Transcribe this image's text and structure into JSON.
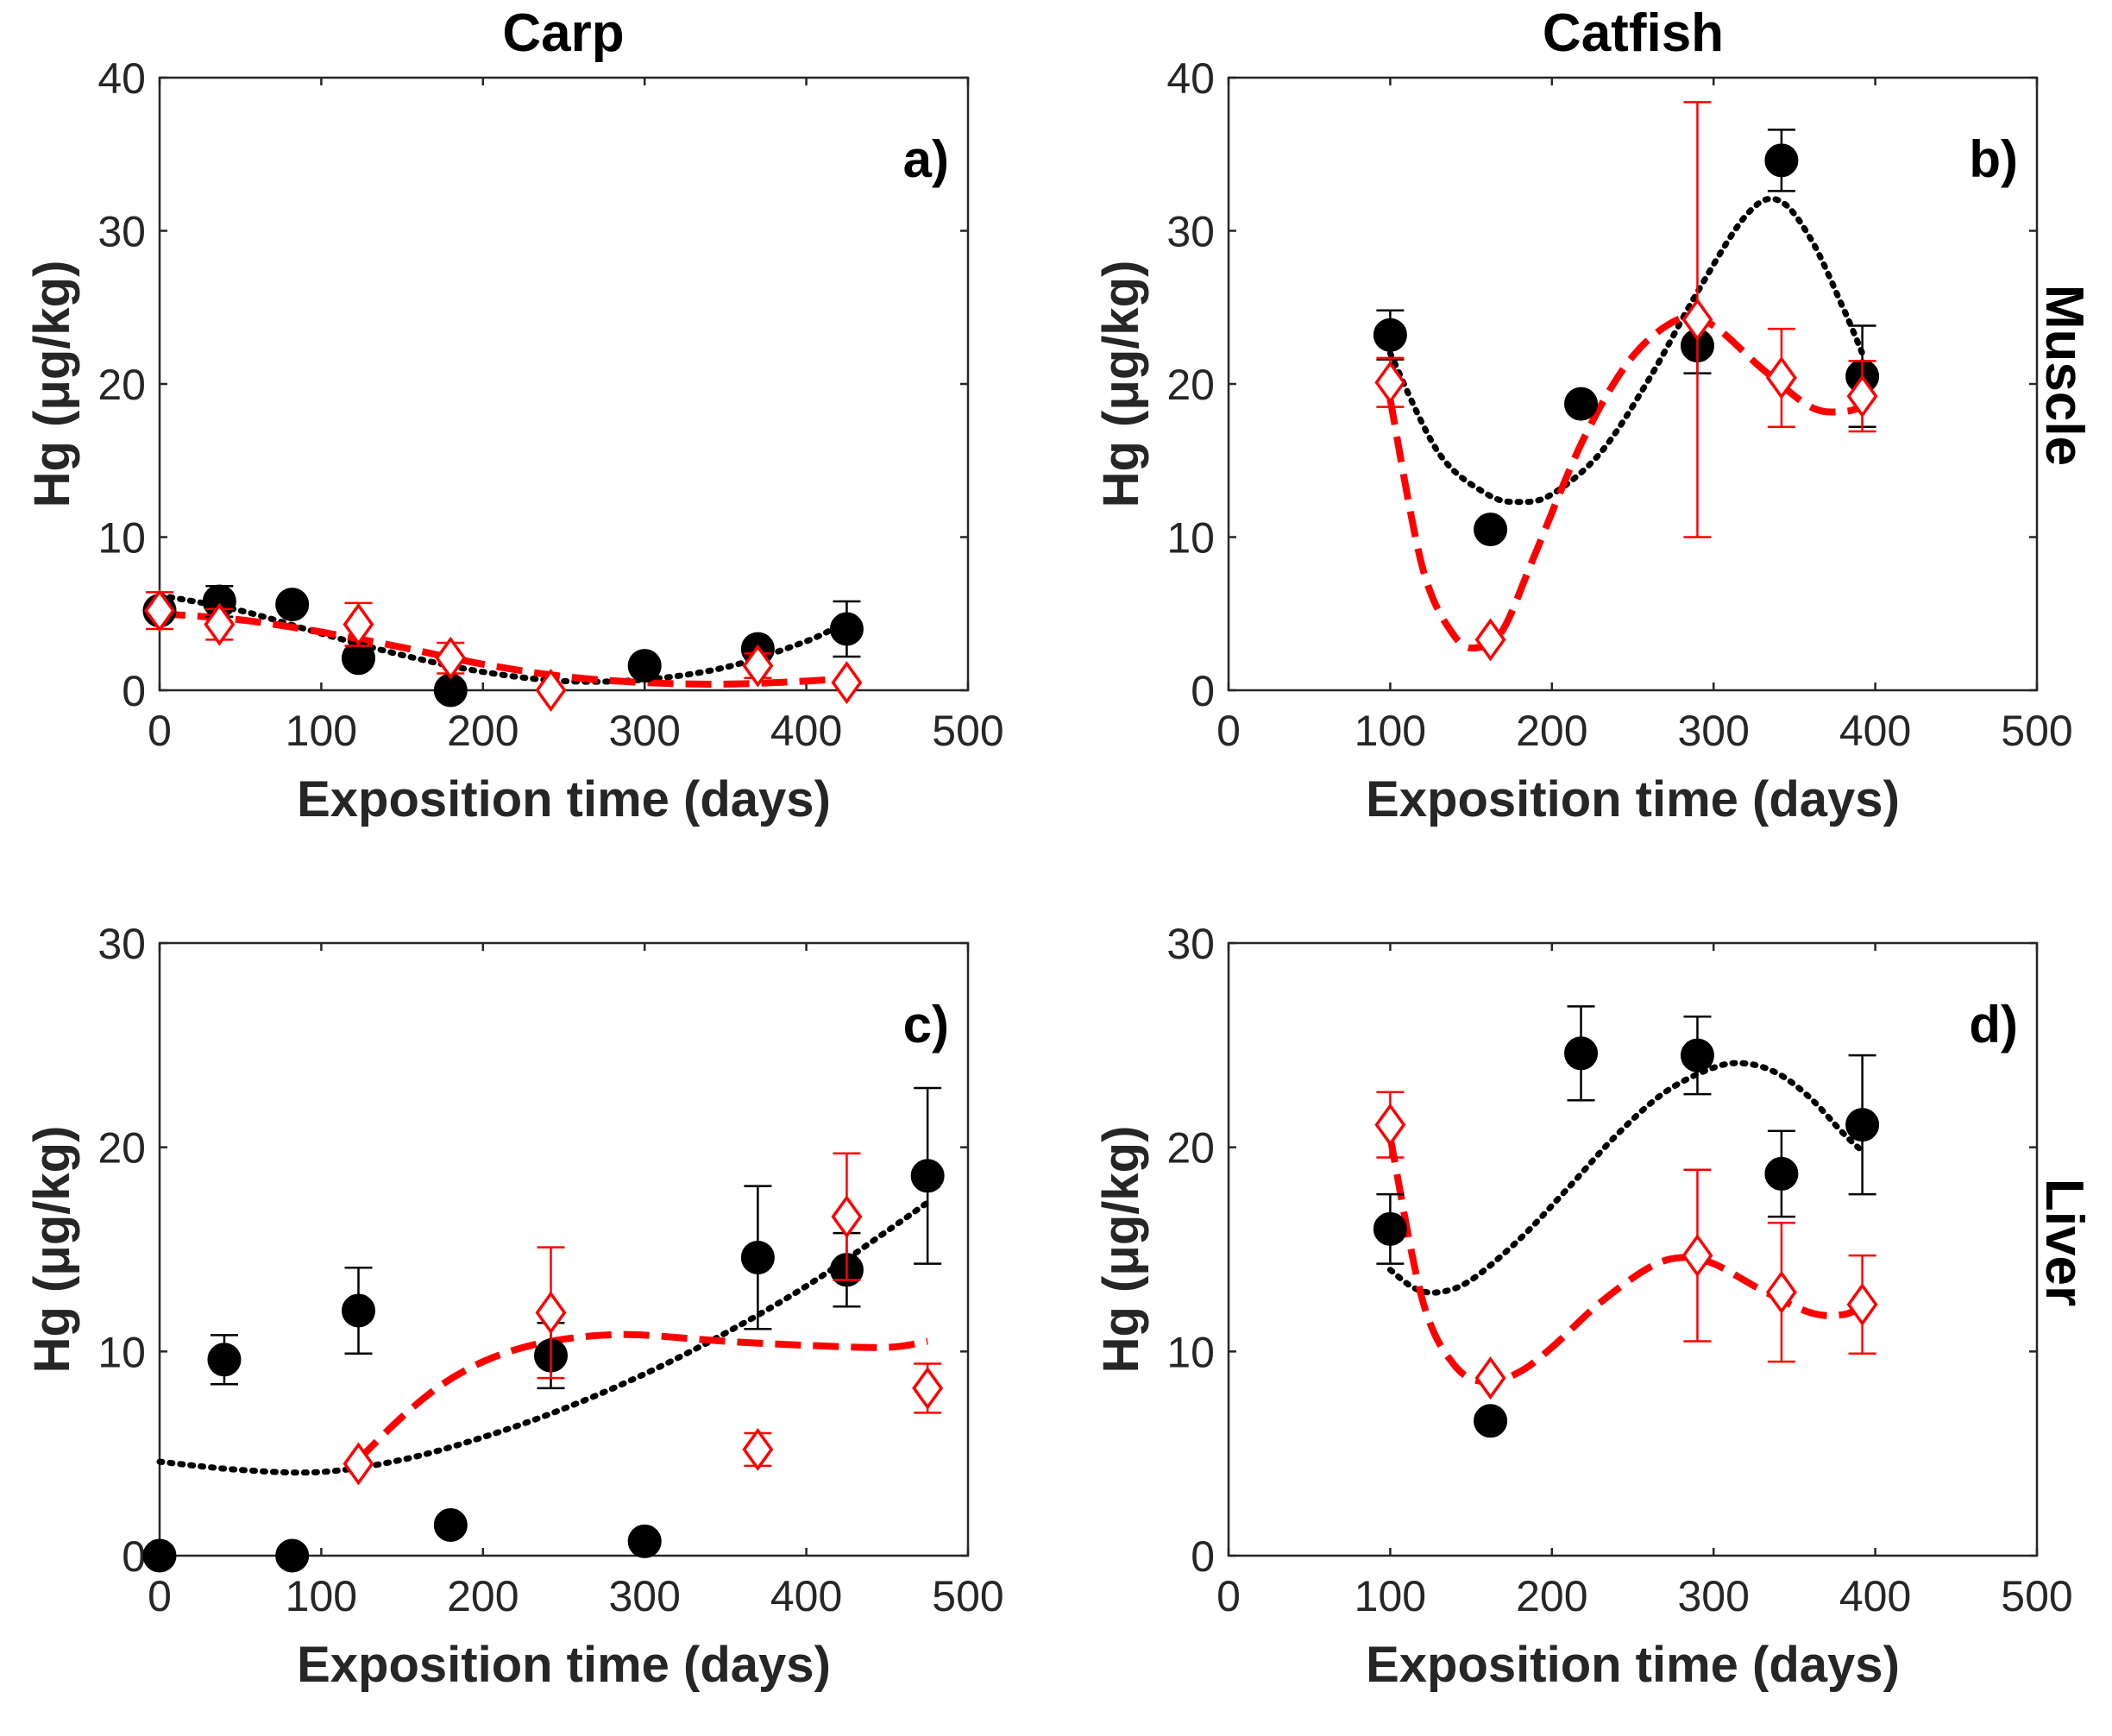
{
  "colors": {
    "series_a": "#000000",
    "series_b": "#ff0000",
    "axis": "#262626"
  },
  "columns": [
    "Carp",
    "Catfish"
  ],
  "rows": [
    "Muscle",
    "Liver"
  ],
  "chart_data": [
    {
      "type": "scatter",
      "panel": "a)",
      "species": "Carp",
      "tissue": "Muscle",
      "xlabel": "Exposition time (days)",
      "ylabel": "Hg (μg/kg)",
      "xlim": [
        0,
        500
      ],
      "ylim": [
        0,
        40
      ],
      "xticks": [
        0,
        100,
        200,
        300,
        400,
        500
      ],
      "yticks": [
        0,
        10,
        20,
        30,
        40
      ],
      "series": [
        {
          "name": "series_a",
          "marker": "filled-circle",
          "x": [
            0,
            37,
            82,
            123,
            180,
            300,
            370,
            425
          ],
          "y": [
            5.2,
            5.8,
            5.6,
            2.1,
            0,
            1.6,
            2.7,
            4.0
          ],
          "err": [
            0,
            1.0,
            0,
            0,
            0,
            0,
            0,
            1.8
          ]
        },
        {
          "name": "series_b",
          "marker": "open-diamond",
          "x": [
            0,
            37,
            123,
            180,
            242,
            370,
            425
          ],
          "y": [
            5.2,
            4.3,
            4.3,
            2.1,
            0,
            1.6,
            0.5
          ],
          "err": [
            1.2,
            1.0,
            1.4,
            1.0,
            0,
            0.8,
            0
          ]
        }
      ],
      "fits": [
        {
          "name": "series_a",
          "style": "dotted",
          "x": [
            0,
            50,
            100,
            150,
            200,
            250,
            300,
            350,
            400,
            425
          ],
          "y": [
            6.2,
            5.2,
            3.7,
            2.3,
            1.2,
            0.6,
            0.7,
            1.5,
            3.2,
            4.5
          ]
        },
        {
          "name": "series_b",
          "style": "dashed",
          "x": [
            0,
            50,
            100,
            150,
            200,
            250,
            300,
            350,
            400,
            425
          ],
          "y": [
            5.0,
            4.6,
            3.8,
            2.8,
            1.7,
            0.9,
            0.5,
            0.4,
            0.6,
            0.8
          ]
        }
      ]
    },
    {
      "type": "scatter",
      "panel": "b)",
      "species": "Catfish",
      "tissue": "Muscle",
      "xlabel": "Exposition time (days)",
      "ylabel": "Hg (μg/kg)",
      "xlim": [
        0,
        500
      ],
      "ylim": [
        0,
        40
      ],
      "xticks": [
        0,
        100,
        200,
        300,
        400,
        500
      ],
      "yticks": [
        0,
        10,
        20,
        30,
        40
      ],
      "series": [
        {
          "name": "series_a",
          "marker": "filled-circle",
          "x": [
            100,
            162,
            218,
            290,
            342,
            392
          ],
          "y": [
            23.2,
            10.5,
            18.7,
            22.5,
            34.6,
            20.5
          ],
          "err": [
            1.6,
            0,
            0,
            1.8,
            2.0,
            3.3
          ]
        },
        {
          "name": "series_b",
          "marker": "open-diamond",
          "x": [
            100,
            162,
            290,
            342,
            392
          ],
          "y": [
            20.1,
            3.3,
            24.2,
            20.4,
            19.2
          ],
          "err": [
            1.6,
            0,
            14.2,
            3.2,
            2.3
          ]
        }
      ],
      "fits": [
        {
          "name": "series_a",
          "style": "dotted",
          "x": [
            100,
            130,
            160,
            180,
            200,
            230,
            260,
            290,
            320,
            340,
            360,
            380,
            392
          ],
          "y": [
            22.0,
            15.5,
            12.8,
            12.3,
            12.8,
            15.5,
            20.3,
            26.0,
            31.0,
            32.0,
            29.5,
            25.0,
            22.0
          ]
        },
        {
          "name": "series_b",
          "style": "dashed",
          "x": [
            100,
            120,
            140,
            155,
            170,
            190,
            220,
            250,
            280,
            300,
            330,
            360,
            380,
            392
          ],
          "y": [
            19.0,
            8.0,
            3.5,
            2.8,
            4.0,
            9.0,
            16.5,
            21.8,
            24.3,
            23.8,
            21.0,
            18.5,
            18.2,
            18.5
          ]
        }
      ]
    },
    {
      "type": "scatter",
      "panel": "c)",
      "species": "Carp",
      "tissue": "Liver",
      "xlabel": "Exposition time (days)",
      "ylabel": "Hg (μg/kg)",
      "xlim": [
        0,
        500
      ],
      "ylim": [
        0,
        30
      ],
      "xticks": [
        0,
        100,
        200,
        300,
        400,
        500
      ],
      "yticks": [
        0,
        10,
        20,
        30
      ],
      "series": [
        {
          "name": "series_a",
          "marker": "filled-circle",
          "x": [
            0,
            40,
            82,
            123,
            180,
            242,
            300,
            370,
            425,
            475
          ],
          "y": [
            0,
            9.6,
            0,
            12.0,
            1.5,
            9.8,
            0.7,
            14.6,
            14.0,
            18.6
          ],
          "err": [
            0,
            1.2,
            0,
            2.1,
            0,
            1.6,
            0,
            3.5,
            1.8,
            4.3
          ]
        },
        {
          "name": "series_b",
          "marker": "open-diamond",
          "x": [
            123,
            242,
            370,
            425,
            475
          ],
          "y": [
            4.5,
            11.9,
            5.2,
            16.6,
            8.2
          ],
          "err": [
            0,
            3.2,
            0.8,
            3.1,
            1.2
          ]
        }
      ],
      "fits": [
        {
          "name": "series_a",
          "style": "dotted",
          "x": [
            0,
            50,
            100,
            150,
            200,
            250,
            300,
            350,
            400,
            450,
            475
          ],
          "y": [
            4.6,
            4.2,
            4.1,
            4.7,
            5.8,
            7.2,
            8.9,
            10.9,
            13.2,
            15.9,
            17.3
          ]
        },
        {
          "name": "series_b",
          "style": "dashed",
          "x": [
            123,
            150,
            175,
            200,
            225,
            250,
            275,
            300,
            350,
            400,
            450,
            475
          ],
          "y": [
            4.7,
            6.8,
            8.4,
            9.5,
            10.2,
            10.6,
            10.8,
            10.8,
            10.5,
            10.3,
            10.2,
            10.5
          ]
        }
      ]
    },
    {
      "type": "scatter",
      "panel": "d)",
      "species": "Catfish",
      "tissue": "Liver",
      "xlabel": "Exposition time (days)",
      "ylabel": "Hg (μg/kg)",
      "xlim": [
        0,
        500
      ],
      "ylim": [
        0,
        30
      ],
      "xticks": [
        0,
        100,
        200,
        300,
        400,
        500
      ],
      "yticks": [
        0,
        10,
        20,
        30
      ],
      "series": [
        {
          "name": "series_a",
          "marker": "filled-circle",
          "x": [
            100,
            162,
            218,
            290,
            342,
            392
          ],
          "y": [
            16.0,
            6.6,
            24.6,
            24.5,
            18.7,
            21.1
          ],
          "err": [
            1.7,
            0,
            2.3,
            1.9,
            2.1,
            3.4
          ]
        },
        {
          "name": "series_b",
          "marker": "open-diamond",
          "x": [
            100,
            162,
            290,
            342,
            392
          ],
          "y": [
            21.1,
            8.7,
            14.7,
            12.9,
            12.3
          ],
          "err": [
            1.6,
            0,
            4.2,
            3.4,
            2.4
          ]
        }
      ],
      "fits": [
        {
          "name": "series_a",
          "style": "dotted",
          "x": [
            100,
            115,
            130,
            150,
            180,
            210,
            240,
            270,
            300,
            320,
            340,
            360,
            380,
            392
          ],
          "y": [
            14.0,
            13.1,
            12.9,
            13.5,
            15.5,
            18.0,
            20.6,
            22.7,
            23.9,
            24.1,
            23.6,
            22.4,
            20.7,
            19.8
          ]
        },
        {
          "name": "series_b",
          "style": "dashed",
          "x": [
            100,
            120,
            140,
            160,
            180,
            200,
            230,
            260,
            280,
            300,
            330,
            360,
            380,
            392
          ],
          "y": [
            20.5,
            12.5,
            9.3,
            8.5,
            9.0,
            10.2,
            12.4,
            14.1,
            14.6,
            14.3,
            13.0,
            11.9,
            11.8,
            12.2
          ]
        }
      ]
    }
  ]
}
